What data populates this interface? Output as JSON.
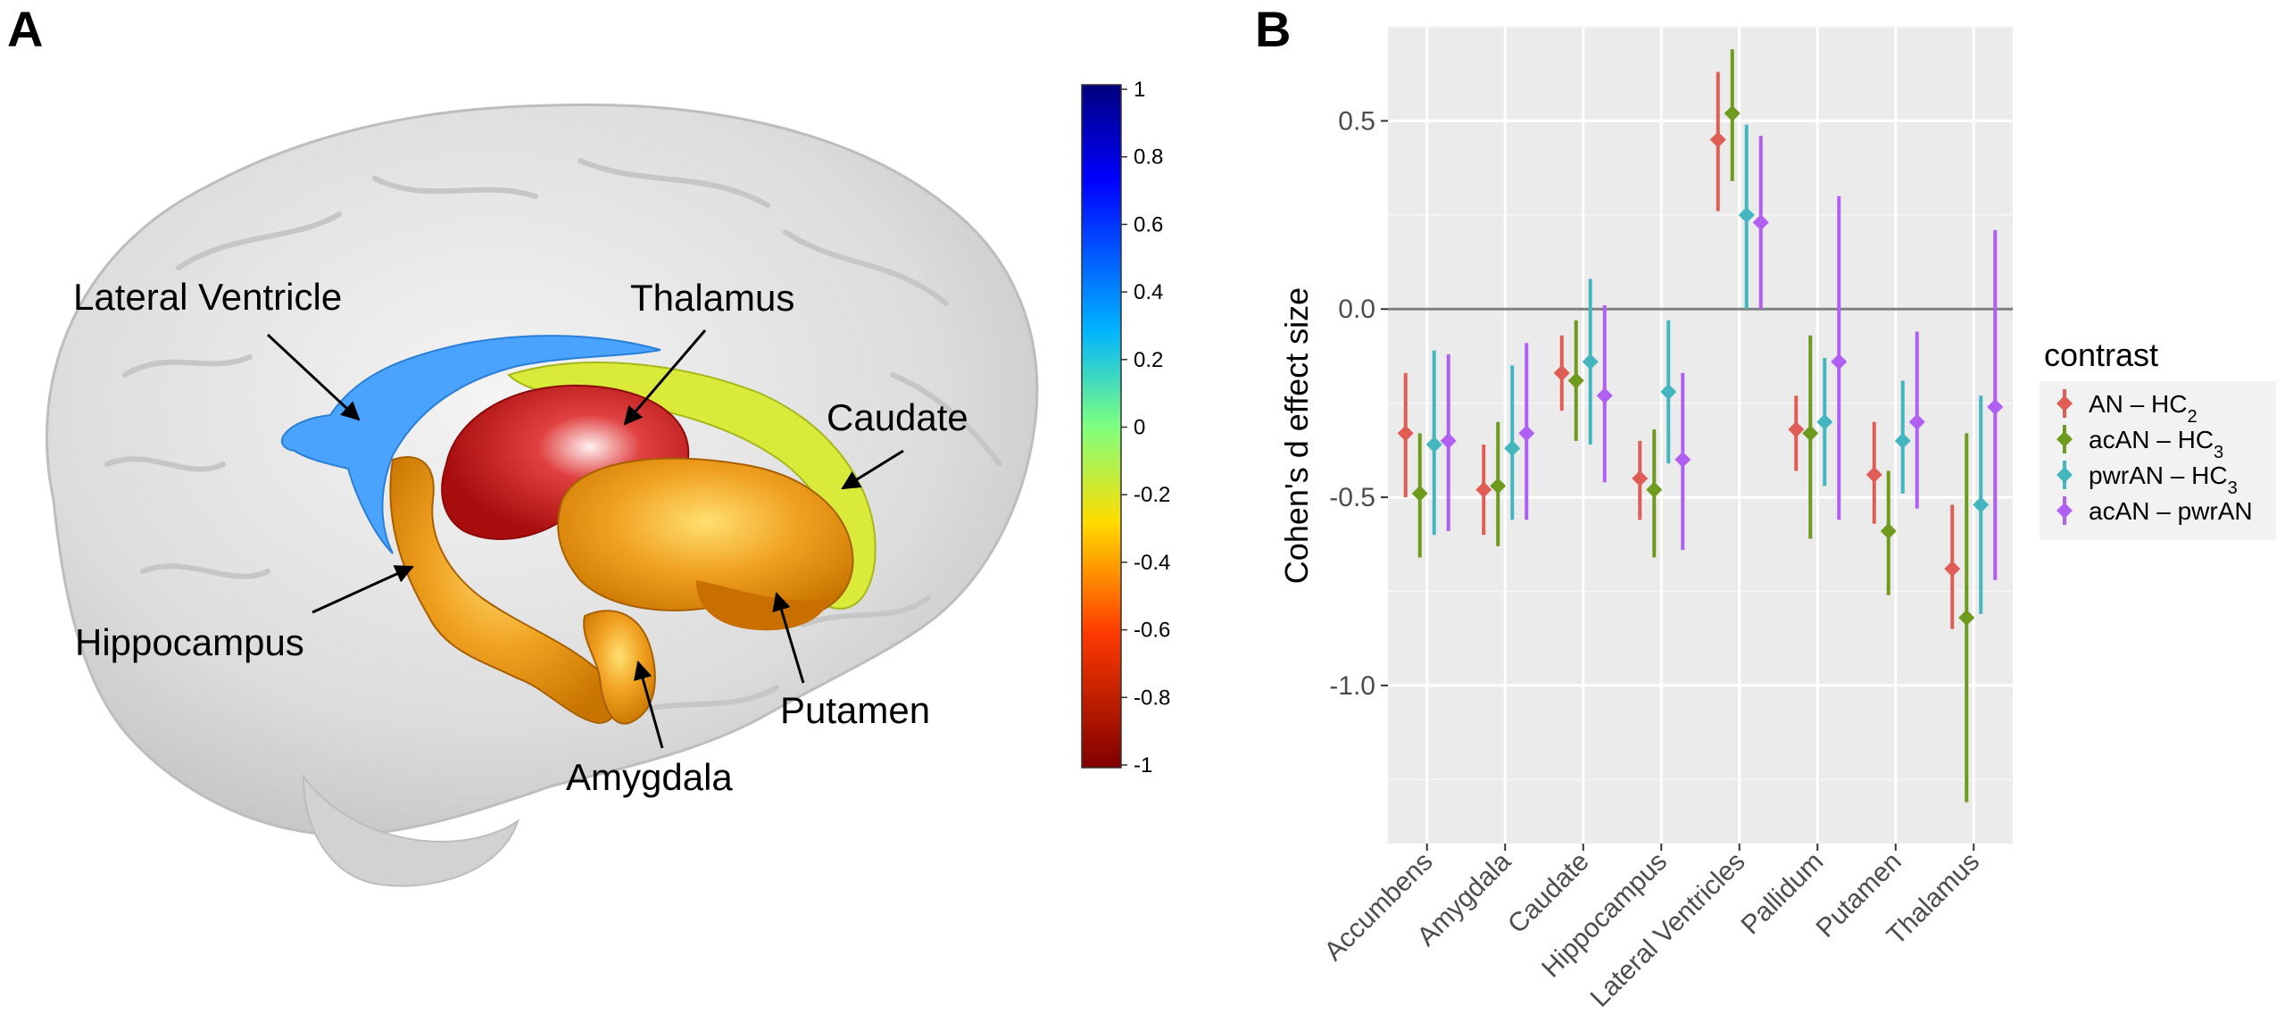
{
  "panel_a": {
    "letter": "A",
    "labels": {
      "lateral_ventricle": "Lateral Ventricle",
      "thalamus": "Thalamus",
      "caudate": "Caudate",
      "hippocampus": "Hippocampus",
      "putamen": "Putamen",
      "amygdala": "Amygdala"
    },
    "colorbar": {
      "ticks": [
        "1",
        "0.8",
        "0.6",
        "0.4",
        "0.2",
        "0",
        "-0.2",
        "-0.4",
        "-0.6",
        "-0.8",
        "-1"
      ],
      "colors": [
        "#7f0000",
        "#ff0000",
        "#ffff00",
        "#00ffff",
        "#0000ff",
        "#00007f"
      ]
    },
    "structure_colors": {
      "lateral_ventricle": "#4aa3ff",
      "thalamus": "#c81818",
      "caudate": "#d9ea3a",
      "hippocampus": "#e8960f",
      "putamen": "#e8960f",
      "amygdala": "#e8960f"
    }
  },
  "panel_b": {
    "letter": "B",
    "legend_title": "contrast",
    "legend_items": [
      {
        "name": "AN",
        "subscript": "",
        "comparison": "HC",
        "comparison_subscript": "2",
        "color": "#e05d55"
      },
      {
        "name": "acAN",
        "subscript": "",
        "comparison": "HC",
        "comparison_subscript": "3",
        "color": "#6e9a1e"
      },
      {
        "name": "pwrAN",
        "subscript": "",
        "comparison": "HC",
        "comparison_subscript": "3",
        "color": "#43b6bf"
      },
      {
        "name": "acAN",
        "subscript": "",
        "comparison": "pwrAN",
        "comparison_subscript": "",
        "color": "#b05ff2"
      }
    ],
    "chart_data": {
      "type": "scatter",
      "subtype": "pointrange",
      "title": "",
      "xlabel": "",
      "ylabel": "Cohen's d effect size",
      "ylim": [
        -1.42,
        0.75
      ],
      "y_ticks": [
        "0.5",
        "0.0",
        "-0.5",
        "-1.0"
      ],
      "reference_line_y": 0,
      "grid": true,
      "legend_position": "right",
      "categories": [
        "Accumbens",
        "Amygdala",
        "Caudate",
        "Hippocampus",
        "Lateral Ventricles",
        "Pallidum",
        "Putamen",
        "Thalamus"
      ],
      "series": [
        {
          "name": "AN – HC2",
          "color": "#e05d55",
          "values": [
            -0.33,
            -0.48,
            -0.17,
            -0.45,
            0.45,
            -0.32,
            -0.44,
            -0.69
          ],
          "lower": [
            -0.5,
            -0.6,
            -0.27,
            -0.56,
            0.26,
            -0.43,
            -0.57,
            -0.85
          ],
          "upper": [
            -0.17,
            -0.36,
            -0.07,
            -0.35,
            0.63,
            -0.23,
            -0.3,
            -0.52
          ]
        },
        {
          "name": "acAN – HC3",
          "color": "#6e9a1e",
          "values": [
            -0.49,
            -0.47,
            -0.19,
            -0.48,
            0.52,
            -0.33,
            -0.59,
            -0.82
          ],
          "lower": [
            -0.66,
            -0.63,
            -0.35,
            -0.66,
            0.34,
            -0.61,
            -0.76,
            -1.31
          ],
          "upper": [
            -0.33,
            -0.3,
            -0.03,
            -0.32,
            0.69,
            -0.07,
            -0.43,
            -0.33
          ]
        },
        {
          "name": "pwrAN – HC3",
          "color": "#43b6bf",
          "values": [
            -0.36,
            -0.37,
            -0.14,
            -0.22,
            0.25,
            -0.3,
            -0.35,
            -0.52
          ],
          "lower": [
            -0.6,
            -0.56,
            -0.36,
            -0.41,
            0,
            -0.47,
            -0.49,
            -0.81
          ],
          "upper": [
            -0.11,
            -0.15,
            0.08,
            -0.03,
            0.49,
            -0.13,
            -0.19,
            -0.23
          ]
        },
        {
          "name": "acAN – pwrAN",
          "color": "#b05ff2",
          "values": [
            -0.35,
            -0.33,
            -0.23,
            -0.4,
            0.23,
            -0.14,
            -0.3,
            -0.26
          ],
          "lower": [
            -0.59,
            -0.56,
            -0.46,
            -0.64,
            0,
            -0.56,
            -0.53,
            -0.72
          ],
          "upper": [
            -0.12,
            -0.09,
            0.01,
            -0.17,
            0.46,
            0.3,
            -0.06,
            0.21
          ]
        }
      ]
    }
  }
}
